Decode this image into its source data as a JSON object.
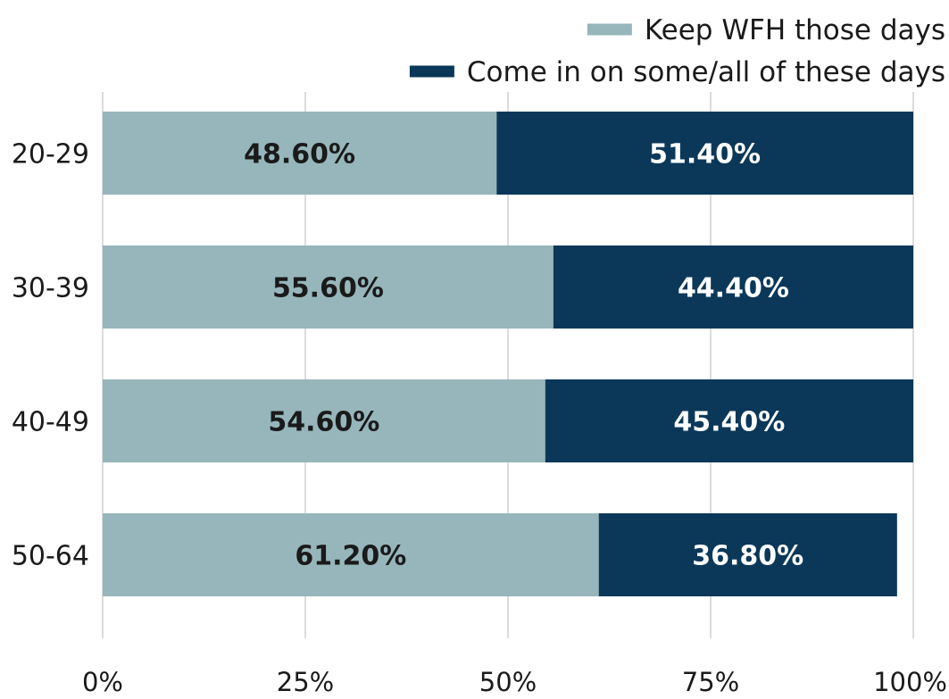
{
  "chart_data": {
    "type": "bar",
    "orientation": "horizontal",
    "stacked": true,
    "title": "",
    "xlabel": "",
    "ylabel": "",
    "xlim": [
      0,
      100
    ],
    "x_ticks": [
      "0%",
      "25%",
      "50%",
      "75%",
      "100%"
    ],
    "x_tick_values": [
      0,
      25,
      50,
      75,
      100
    ],
    "grid": "vertical",
    "legend_position": "top-right",
    "categories": [
      "20-29",
      "30-39",
      "40-49",
      "50-64"
    ],
    "series": [
      {
        "name": "Keep WFH those days",
        "color": "#96b6bb",
        "label_color": "#1a1a1a",
        "values": [
          48.6,
          55.6,
          54.6,
          61.2
        ],
        "labels": [
          "48.60%",
          "55.60%",
          "54.60%",
          "61.20%"
        ]
      },
      {
        "name": "Come in on some/all of these days",
        "color": "#0b3859",
        "label_color": "#ffffff",
        "values": [
          51.4,
          44.4,
          45.4,
          36.8
        ],
        "labels": [
          "51.40%",
          "44.40%",
          "45.40%",
          "36.80%"
        ]
      }
    ]
  }
}
